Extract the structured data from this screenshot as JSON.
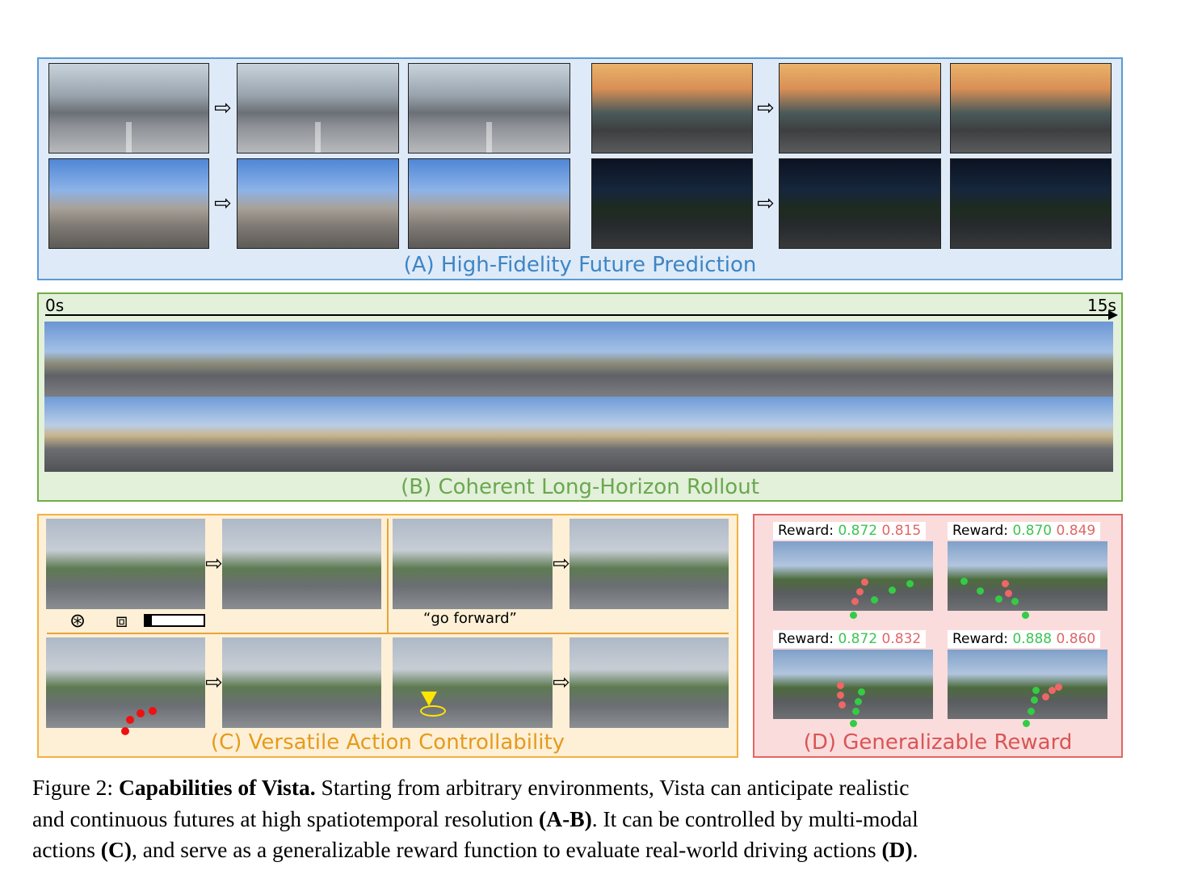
{
  "panels": {
    "a": {
      "title": "(A) High-Fidelity Future Prediction"
    },
    "b": {
      "title": "(B) Coherent Long-Horizon Rollout",
      "time_start": "0s",
      "time_end": "15s"
    },
    "c": {
      "title": "(C) Versatile Action Controllability",
      "command_text": "“go forward”"
    },
    "d": {
      "title": "(D) Generalizable Reward",
      "rewards": [
        {
          "label": "Reward:",
          "good": "0.872",
          "bad": "0.815"
        },
        {
          "label": "Reward:",
          "good": "0.870",
          "bad": "0.849"
        },
        {
          "label": "Reward:",
          "good": "0.872",
          "bad": "0.832"
        },
        {
          "label": "Reward:",
          "good": "0.888",
          "bad": "0.860"
        }
      ]
    }
  },
  "icons": {
    "arrow": "right-outline-arrow-icon",
    "steering": "steering-wheel-icon",
    "pedals": "pedals-icon"
  },
  "colors": {
    "panel_a": "#5b9bd5",
    "panel_b": "#70ad47",
    "panel_c": "#f5b041",
    "panel_d": "#e06666",
    "good": "#3cc454",
    "bad": "#e06666"
  },
  "figure": {
    "label": "Figure 2:",
    "title": "Capabilities of Vista.",
    "text1": " Starting from arbitrary environments, Vista can anticipate realistic",
    "text2a": "and continuous futures at high spatiotemporal resolution ",
    "ref_ab": "(A-B)",
    "text2b": ". It can be controlled by multi-modal",
    "text3a": "actions ",
    "ref_c": "(C)",
    "text3b": ", and serve as a generalizable reward function to evaluate real-world driving actions ",
    "ref_d": "(D)",
    "text3c": "."
  }
}
